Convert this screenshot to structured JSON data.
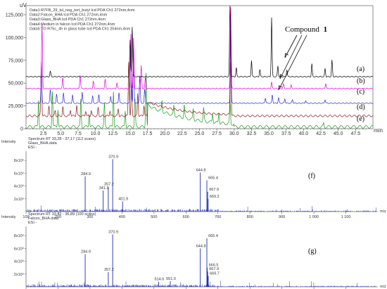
{
  "chart_data": [
    {
      "type": "line",
      "ylabel": "uV",
      "xlabel": "min",
      "ylim": [
        0,
        135000
      ],
      "xlim": [
        0,
        50
      ],
      "yticks": [
        "125,000",
        "100,000",
        "75,000",
        "50,000",
        "25,000",
        "0"
      ],
      "ytick_values": [
        125000,
        100000,
        75000,
        50000,
        25000,
        0
      ],
      "xticks": [
        "2.5",
        "5.0",
        "7.5",
        "10.0",
        "12.5",
        "15.0",
        "17.5",
        "20.0",
        "22.5",
        "25.0",
        "27.5",
        "30.0",
        "32.5",
        "35.0",
        "37.5",
        "40.0",
        "42.5",
        "45.0",
        "47.5"
      ],
      "xtick_values": [
        2.5,
        5.0,
        7.5,
        10.0,
        12.5,
        15.0,
        17.5,
        20.0,
        22.5,
        25.0,
        27.5,
        30.0,
        32.5,
        35.0,
        37.5,
        40.0,
        42.5,
        45.0,
        47.5
      ],
      "legend": [
        {
          "text": "Data1:R7FB_29_tsl_neg_tert_butyl Icd PDA Ch1 272nm,4nm",
          "color": "#000000"
        },
        {
          "text": "Data2:Falcon_BHA Icd PDA Ch1 272nm,4nm",
          "color": "#e600e6"
        },
        {
          "text": "Data3:Glass_BHA Icd PDA Ch1 272nm,4nm",
          "color": "#2a2ad6"
        },
        {
          "text": "Data4:Medium in falcon Icd PDA Ch1 272nm,4nm",
          "color": "#8b1a1a"
        },
        {
          "text": "Data5:TO R75c_4h in glass tube Icd PDA Ch1 254nm,4nm",
          "color": "#1a9a1a"
        }
      ],
      "legend_placement": "top-left",
      "annotation": {
        "text": "Compound",
        "bold": "1",
        "target_x": 35.5
      },
      "series": [
        {
          "name": "(a)",
          "color": "#000000",
          "baseline": 57000,
          "peaks": [
            [
              3.5,
              6000
            ],
            [
              15,
              40000
            ],
            [
              15.3,
              55000
            ],
            [
              29.4,
              80000
            ],
            [
              30.3,
              10000
            ],
            [
              32.5,
              18000
            ],
            [
              33.7,
              8000
            ],
            [
              35.4,
              65000
            ],
            [
              36.3,
              12000
            ],
            [
              37.6,
              8000
            ],
            [
              41.2,
              14000
            ],
            [
              43.1,
              9000
            ],
            [
              44.1,
              18000
            ]
          ]
        },
        {
          "name": "(b)",
          "color": "#e600e6",
          "baseline": 44000,
          "peaks": [
            [
              2.3,
              70000
            ],
            [
              5.3,
              12000
            ],
            [
              7.8,
              15000
            ],
            [
              9.7,
              8000
            ],
            [
              11.4,
              10000
            ],
            [
              13.1,
              6000
            ],
            [
              15.1,
              60000
            ],
            [
              15.5,
              55000
            ],
            [
              16.6,
              25000
            ],
            [
              17.2,
              12000
            ],
            [
              29.5,
              90000
            ],
            [
              35.4,
              7000
            ],
            [
              37.1,
              5000
            ],
            [
              38.2,
              4000
            ],
            [
              43.2,
              6000
            ]
          ]
        },
        {
          "name": "(c)",
          "color": "#2a2ad6",
          "baseline": 28000,
          "peaks": [
            [
              2.2,
              40000
            ],
            [
              3.5,
              15000
            ],
            [
              4.4,
              10000
            ],
            [
              5.4,
              12000
            ],
            [
              6.7,
              9000
            ],
            [
              8.1,
              12000
            ],
            [
              9.6,
              8000
            ],
            [
              10.5,
              10000
            ],
            [
              12.2,
              8000
            ],
            [
              13.4,
              12000
            ],
            [
              15.1,
              70000
            ],
            [
              15.5,
              60000
            ],
            [
              16.4,
              30000
            ],
            [
              17.1,
              15000
            ],
            [
              29.5,
              80000
            ],
            [
              34.5,
              6000
            ],
            [
              35.5,
              9000
            ],
            [
              36.4,
              6000
            ],
            [
              37.3,
              5000
            ],
            [
              38.4,
              4000
            ],
            [
              40.3,
              3000
            ],
            [
              43.1,
              4000
            ]
          ]
        },
        {
          "name": "(d)",
          "color": "#8b1a1a",
          "baseline": 14000,
          "peaks": [
            [
              2.2,
              60000
            ],
            [
              3.3,
              10000
            ],
            [
              4.2,
              6000
            ],
            [
              5.3,
              10000
            ],
            [
              6.4,
              7000
            ],
            [
              7.3,
              12000
            ],
            [
              8.6,
              6000
            ],
            [
              9.4,
              6000
            ],
            [
              10.4,
              9000
            ],
            [
              12.1,
              6000
            ],
            [
              13.3,
              8000
            ],
            [
              14.8,
              60000
            ],
            [
              15.2,
              40000
            ],
            [
              16.1,
              25000
            ],
            [
              17,
              12000
            ],
            [
              29.5,
              60000
            ]
          ]
        },
        {
          "name": "(e)",
          "color": "#1a9a1a",
          "baseline": 2000,
          "peaks": [
            [
              1.8,
              30000
            ],
            [
              3.8,
              40000
            ],
            [
              4.6,
              20000
            ],
            [
              7.9,
              30000
            ],
            [
              9.1,
              15000
            ],
            [
              11.3,
              25000
            ],
            [
              12.6,
              40000
            ],
            [
              14.3,
              18000
            ],
            [
              15.7,
              30000
            ],
            [
              17.3,
              60000
            ],
            [
              19.6,
              12000
            ],
            [
              21.3,
              10000
            ],
            [
              22.8,
              14000
            ],
            [
              24.1,
              12000
            ],
            [
              25.6,
              14000
            ],
            [
              26.9,
              10000
            ],
            [
              27.8,
              12000
            ],
            [
              29.4,
              24000
            ],
            [
              42.9,
              4000
            ]
          ]
        }
      ],
      "trace_labels": [
        "(a)",
        "(b)",
        "(c)",
        "(d)",
        "(e)"
      ]
    },
    {
      "type": "bar",
      "panel_label": "(f)",
      "header": [
        "Spectrum RT 33,28 - 37,17 (112 scans)",
        "Glass_BHA.data",
        "ESI -"
      ],
      "ylabel": "Intensity",
      "xlabel": "m/z",
      "ylim": [
        0,
        9000000
      ],
      "xlim": [
        100,
        1200
      ],
      "yticks": [
        "8x10⁶",
        "6x10⁶",
        "4x10⁶",
        "2x10⁶",
        "0"
      ],
      "ytick_values": [
        8000000,
        6000000,
        4000000,
        2000000,
        0
      ],
      "xticks": [
        "100",
        "200",
        "300",
        "400",
        "500",
        "600",
        "700",
        "800",
        "900",
        "1 000",
        "1 100"
      ],
      "xtick_values": [
        100,
        200,
        300,
        400,
        500,
        600,
        700,
        800,
        900,
        1000,
        1100
      ],
      "peaks": [
        {
          "mz": 284.9,
          "intensity": 5500000,
          "label": "284.9"
        },
        {
          "mz": 341.1,
          "intensity": 3300000,
          "label": "341.1"
        },
        {
          "mz": 357.2,
          "intensity": 3900000,
          "label": "357.2"
        },
        {
          "mz": 370.9,
          "intensity": 8200000,
          "label": "370.9"
        },
        {
          "mz": 401.9,
          "intensity": 1600000,
          "label": "401.9"
        },
        {
          "mz": 644.8,
          "intensity": 6100000,
          "label": "644.8"
        },
        {
          "mz": 665.4,
          "intensity": 4900000,
          "label": "665.4"
        },
        {
          "mz": 667.9,
          "intensity": 3100000,
          "label": "667.9"
        },
        {
          "mz": 669.2,
          "intensity": 2000000,
          "label": "669.2"
        }
      ]
    },
    {
      "type": "bar",
      "panel_label": "(g)",
      "header": [
        "Spectrum RT 33,42 - 36,89 (100 scans)",
        "Falcon_BHA.data",
        "ESI -"
      ],
      "ylabel": "Intensity",
      "xlabel": "m/z",
      "ylim": [
        0,
        9000000
      ],
      "xlim": [
        100,
        1200
      ],
      "yticks": [
        "8x10⁶",
        "6x10⁶",
        "4x10⁶",
        "2x10⁶",
        "0"
      ],
      "ytick_values": [
        8000000,
        6000000,
        4000000,
        2000000,
        0
      ],
      "xticks": [
        "100",
        "200",
        "300",
        "400",
        "500",
        "600",
        "700",
        "800",
        "900",
        "1 000",
        "1 100"
      ],
      "xtick_values": [
        100,
        200,
        300,
        400,
        500,
        600,
        700,
        800,
        900,
        1000,
        1100
      ],
      "peaks": [
        {
          "mz": 284.9,
          "intensity": 5100000,
          "label": "284.9"
        },
        {
          "mz": 357.2,
          "intensity": 2300000,
          "label": "357.2"
        },
        {
          "mz": 370.9,
          "intensity": 8200000,
          "label": "370.9"
        },
        {
          "mz": 514.6,
          "intensity": 800000,
          "label": "514.6"
        },
        {
          "mz": 551.0,
          "intensity": 900000,
          "label": "551.0"
        },
        {
          "mz": 644.8,
          "intensity": 6000000,
          "label": "644.8"
        },
        {
          "mz": 665.4,
          "intensity": 7600000,
          "label": "665.4"
        },
        {
          "mz": 666.5,
          "intensity": 3000000,
          "label": "666.5"
        },
        {
          "mz": 667.9,
          "intensity": 2400000,
          "label": "667.9"
        },
        {
          "mz": 669.7,
          "intensity": 1700000,
          "label": "669.7"
        }
      ]
    }
  ]
}
